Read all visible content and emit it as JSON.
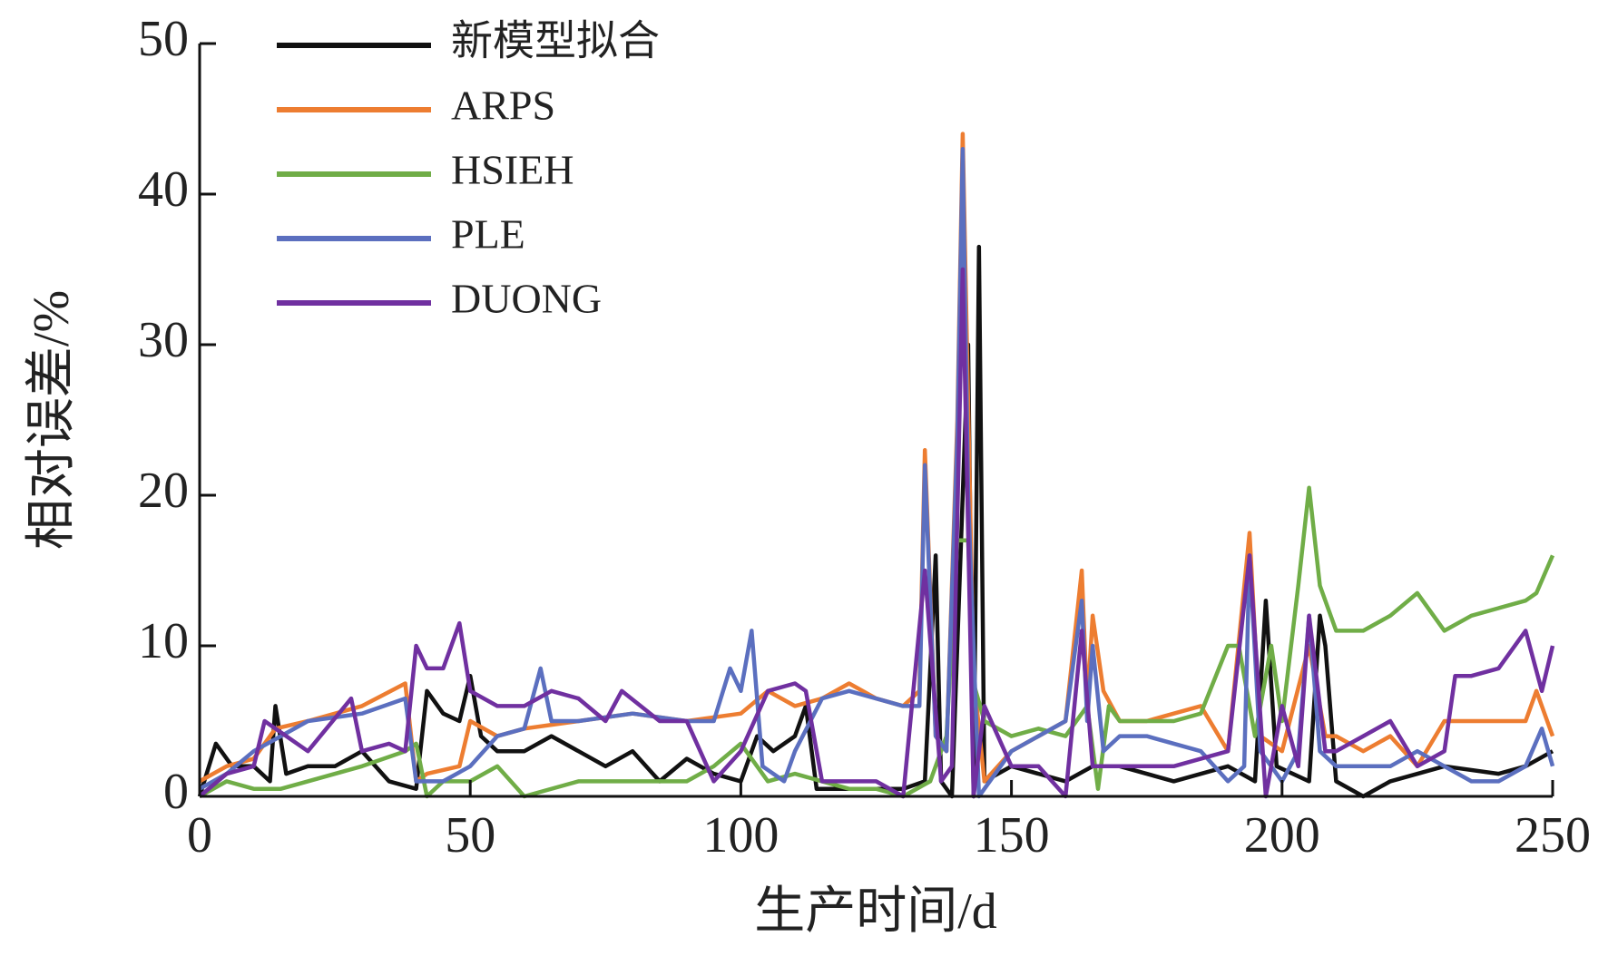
{
  "chart_data": {
    "type": "line",
    "x_label": "生产时间/d",
    "y_label": "相对误差/%",
    "xlim": [
      0,
      250
    ],
    "ylim": [
      0,
      50
    ],
    "xticks": [
      0,
      50,
      100,
      150,
      200,
      250
    ],
    "yticks": [
      0,
      10,
      20,
      30,
      40,
      50
    ],
    "grid": false,
    "legend": "upper left",
    "series": [
      {
        "name": "新模型拟合",
        "color": "#111111",
        "x": [
          0,
          3,
          6,
          10,
          13,
          14,
          16,
          20,
          25,
          30,
          35,
          40,
          42,
          45,
          48,
          50,
          52,
          55,
          60,
          65,
          70,
          75,
          80,
          85,
          90,
          95,
          100,
          103,
          106,
          110,
          112,
          114,
          120,
          130,
          134,
          136,
          137,
          139,
          141,
          142,
          143,
          144,
          145,
          150,
          160,
          165,
          170,
          180,
          190,
          195,
          197,
          199,
          205,
          207,
          208,
          210,
          215,
          220,
          230,
          240,
          245,
          250
        ],
        "values": [
          0,
          3.5,
          2,
          2,
          1,
          6,
          1.5,
          2,
          2,
          3,
          1,
          0.5,
          7,
          5.5,
          5,
          8,
          4,
          3,
          3,
          4,
          3,
          2,
          3,
          1,
          2.5,
          1.5,
          1,
          4,
          3,
          4,
          6,
          0.5,
          0.5,
          0.5,
          1,
          16,
          1,
          0,
          20,
          30,
          0,
          36.5,
          1,
          2,
          1,
          2,
          2,
          1,
          2,
          1,
          13,
          2,
          1,
          12,
          10,
          1,
          0,
          1,
          2,
          1.5,
          2,
          3
        ]
      },
      {
        "name": "ARPS",
        "color": "#ed7d31",
        "x": [
          0,
          5,
          10,
          14,
          20,
          30,
          38,
          40,
          42,
          48,
          50,
          55,
          60,
          70,
          80,
          90,
          100,
          105,
          110,
          115,
          120,
          125,
          130,
          133,
          134,
          136,
          138,
          140,
          141,
          143,
          145,
          150,
          160,
          163,
          164,
          165,
          167,
          170,
          175,
          180,
          185,
          190,
          194,
          196,
          200,
          205,
          208,
          210,
          215,
          220,
          225,
          230,
          235,
          240,
          245,
          247,
          250
        ],
        "values": [
          1,
          2,
          2.5,
          4.5,
          5,
          6,
          7.5,
          1,
          1.5,
          2,
          5,
          4,
          4.5,
          5,
          5.5,
          5,
          5.5,
          7,
          6,
          6.5,
          7.5,
          6.5,
          6,
          7,
          23,
          4,
          3,
          25,
          44,
          8,
          1,
          3,
          5,
          15,
          6,
          12,
          7,
          5,
          5,
          5.5,
          6,
          3,
          17.5,
          4,
          3,
          10,
          4,
          4,
          3,
          4,
          2,
          5,
          5,
          5,
          5,
          7,
          4
        ]
      },
      {
        "name": "HSIEH",
        "color": "#70ad47",
        "x": [
          0,
          5,
          10,
          15,
          20,
          30,
          38,
          40,
          42,
          45,
          50,
          55,
          60,
          70,
          80,
          90,
          95,
          100,
          105,
          110,
          115,
          120,
          125,
          130,
          135,
          138,
          140,
          142,
          143,
          145,
          150,
          155,
          160,
          164,
          166,
          168,
          170,
          180,
          185,
          190,
          192,
          195,
          198,
          200,
          203,
          205,
          207,
          210,
          215,
          220,
          225,
          230,
          235,
          240,
          245,
          247,
          250
        ],
        "values": [
          0,
          1,
          0.5,
          0.5,
          1,
          2,
          3,
          3.5,
          0,
          1,
          1,
          2,
          0,
          1,
          1,
          1,
          2,
          3.5,
          1,
          1.5,
          1,
          0.5,
          0.5,
          0,
          1,
          4,
          17,
          17,
          7.5,
          5,
          4,
          4.5,
          4,
          6,
          0.5,
          6,
          5,
          5,
          5.5,
          10,
          10,
          4,
          10,
          5,
          14,
          20.5,
          14,
          11,
          11,
          12,
          13.5,
          11,
          12,
          12.5,
          13,
          13.5,
          16
        ]
      },
      {
        "name": "PLE",
        "color": "#5b6fbf",
        "x": [
          0,
          5,
          10,
          15,
          20,
          30,
          38,
          40,
          45,
          50,
          55,
          60,
          63,
          65,
          70,
          80,
          90,
          95,
          98,
          100,
          102,
          104,
          108,
          110,
          115,
          120,
          130,
          133,
          134,
          136,
          138,
          140,
          141,
          142,
          144,
          150,
          160,
          163,
          164,
          165,
          167,
          170,
          175,
          185,
          190,
          193,
          194,
          196,
          200,
          203,
          205,
          207,
          210,
          220,
          225,
          230,
          235,
          240,
          245,
          248,
          250
        ],
        "values": [
          0.5,
          1.5,
          3,
          4,
          5,
          5.5,
          6.5,
          1,
          1,
          2,
          4,
          4.5,
          8.5,
          5,
          5,
          5.5,
          5,
          5,
          8.5,
          7,
          11,
          2,
          1,
          3,
          6.5,
          7,
          6,
          6,
          22,
          4,
          3,
          24,
          43,
          20,
          0,
          3,
          5,
          13,
          5,
          10,
          3,
          4,
          4,
          3,
          1,
          2,
          16,
          3,
          1,
          3,
          12,
          3,
          2,
          2,
          3,
          2,
          1,
          1,
          2,
          4.5,
          2
        ]
      },
      {
        "name": "DUONG",
        "color": "#7030a0",
        "x": [
          0,
          5,
          10,
          12,
          20,
          28,
          30,
          35,
          38,
          40,
          42,
          45,
          48,
          50,
          55,
          60,
          65,
          70,
          75,
          78,
          85,
          90,
          95,
          100,
          105,
          110,
          112,
          115,
          125,
          130,
          134,
          137,
          139,
          141,
          143,
          145,
          150,
          155,
          160,
          163,
          165,
          168,
          175,
          180,
          190,
          194,
          197,
          200,
          203,
          205,
          208,
          210,
          215,
          220,
          225,
          230,
          232,
          235,
          240,
          245,
          248,
          250
        ],
        "values": [
          0,
          1.5,
          2,
          5,
          3,
          6.5,
          3,
          3.5,
          3,
          10,
          8.5,
          8.5,
          11.5,
          7,
          6,
          6,
          7,
          6.5,
          5,
          7,
          5,
          5,
          1,
          3,
          7,
          7.5,
          7,
          1,
          1,
          0,
          15,
          1,
          2,
          35,
          0,
          6,
          2,
          2,
          0,
          11,
          2,
          2,
          2,
          2,
          3,
          16,
          0,
          6,
          2,
          12,
          3,
          3,
          4,
          5,
          2,
          3,
          8,
          8,
          8.5,
          11,
          7,
          10
        ]
      }
    ]
  }
}
